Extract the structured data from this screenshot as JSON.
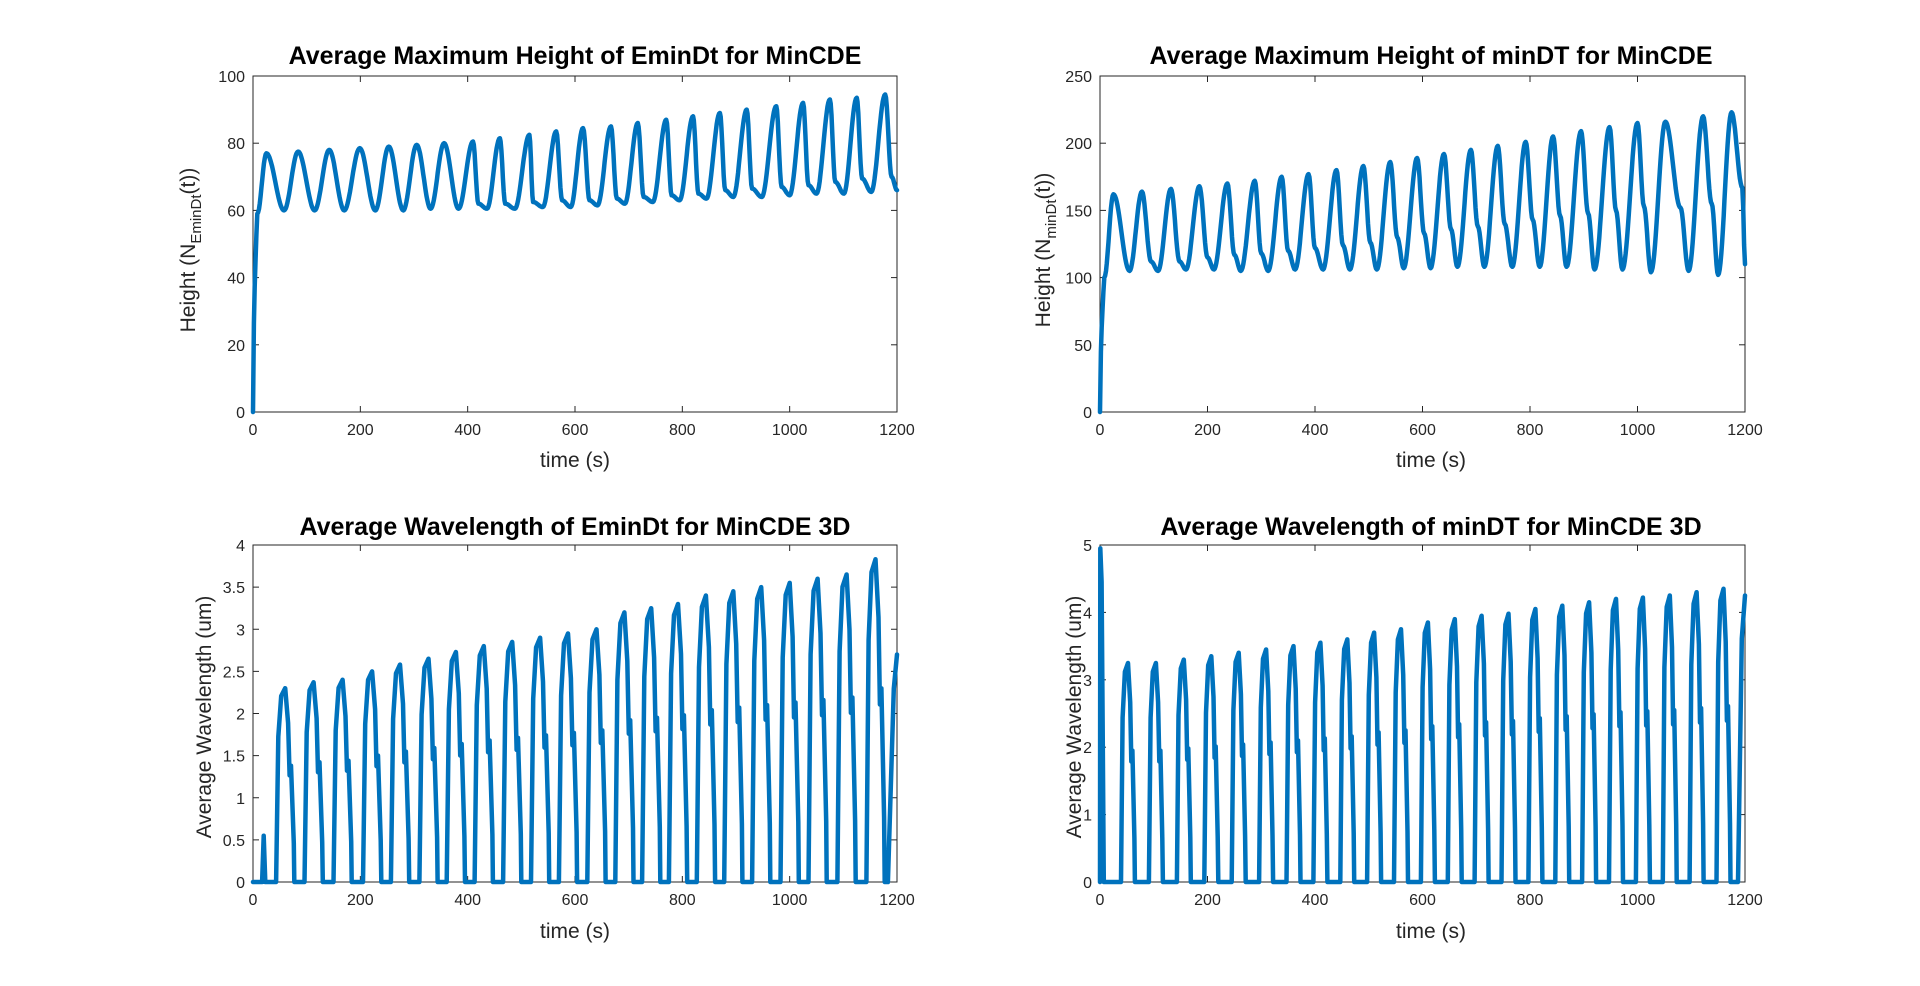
{
  "figure": {
    "background": "#ffffff"
  },
  "chart_data": [
    {
      "id": "top-left",
      "type": "line",
      "title": "Average Maximum Height of EminDt for MinCDE",
      "xlabel": "time (s)",
      "ylabel_main": "Height (N",
      "ylabel_sub": "EminDt",
      "ylabel_end": "(t))",
      "xlim": [
        0,
        1200
      ],
      "ylim": [
        0,
        100
      ],
      "xticks": [
        0,
        200,
        400,
        600,
        800,
        1000,
        1200
      ],
      "yticks": [
        0,
        20,
        40,
        60,
        80,
        100
      ],
      "grid": false,
      "series": [
        {
          "color": "#0072BD",
          "start": {
            "t": 0,
            "y": 0
          },
          "peaks": [
            [
              25,
              77
            ],
            [
              84,
              77.5
            ],
            [
              142,
              78
            ],
            [
              199,
              78.5
            ],
            [
              253,
              79
            ],
            [
              305,
              79.5
            ],
            [
              356,
              80
            ],
            [
              410,
              80.5
            ],
            [
              460,
              81.5
            ],
            [
              515,
              82.5
            ],
            [
              565,
              83.5
            ],
            [
              615,
              84.5
            ],
            [
              667,
              85
            ],
            [
              717,
              86
            ],
            [
              770,
              87
            ],
            [
              820,
              88
            ],
            [
              870,
              89
            ],
            [
              920,
              90
            ],
            [
              975,
              91
            ],
            [
              1025,
              92
            ],
            [
              1075,
              93
            ],
            [
              1125,
              93.5
            ],
            [
              1178,
              94.5
            ]
          ],
          "troughs": [
            [
              8,
              59
            ],
            [
              58,
              60
            ],
            [
              115,
              60
            ],
            [
              170,
              60
            ],
            [
              228,
              60
            ],
            [
              280,
              60
            ],
            [
              331,
              60.5
            ],
            [
              383,
              60.5
            ],
            [
              436,
              60.5
            ],
            [
              488,
              60.5
            ],
            [
              540,
              61
            ],
            [
              592,
              61
            ],
            [
              642,
              61.5
            ],
            [
              693,
              62
            ],
            [
              745,
              62.5
            ],
            [
              795,
              63
            ],
            [
              845,
              63.5
            ],
            [
              895,
              64
            ],
            [
              948,
              64
            ],
            [
              1000,
              64.5
            ],
            [
              1050,
              65
            ],
            [
              1101,
              65
            ],
            [
              1152,
              65.5
            ],
            [
              1200,
              66
            ]
          ],
          "shoulders": [
            [
              420,
              62
            ],
            [
              470,
              62
            ],
            [
              522,
              62.5
            ],
            [
              576,
              63
            ],
            [
              627,
              63
            ],
            [
              678,
              63.5
            ],
            [
              728,
              64
            ],
            [
              780,
              64.5
            ],
            [
              830,
              65
            ],
            [
              880,
              66
            ],
            [
              930,
              66.5
            ],
            [
              985,
              67
            ],
            [
              1035,
              67.5
            ],
            [
              1085,
              68.5
            ],
            [
              1135,
              69.5
            ],
            [
              1190,
              70
            ]
          ]
        }
      ]
    },
    {
      "id": "top-right",
      "type": "line",
      "title": "Average Maximum Height of minDT for MinCDE",
      "xlabel": "time (s)",
      "ylabel_main": "Height (N",
      "ylabel_sub": "minDt",
      "ylabel_end": "(t))",
      "xlim": [
        0,
        1200
      ],
      "ylim": [
        0,
        250
      ],
      "xticks": [
        0,
        200,
        400,
        600,
        800,
        1000,
        1200
      ],
      "yticks": [
        0,
        50,
        100,
        150,
        200,
        250
      ],
      "grid": false,
      "series": [
        {
          "color": "#0072BD",
          "start": {
            "t": 0,
            "y": 0
          },
          "peaks": [
            [
              25,
              162
            ],
            [
              78,
              164
            ],
            [
              132,
              166
            ],
            [
              185,
              168
            ],
            [
              237,
              170
            ],
            [
              288,
              172
            ],
            [
              338,
              175
            ],
            [
              388,
              177
            ],
            [
              440,
              180
            ],
            [
              490,
              183
            ],
            [
              540,
              186
            ],
            [
              590,
              189
            ],
            [
              640,
              192
            ],
            [
              690,
              195
            ],
            [
              740,
              198
            ],
            [
              792,
              201
            ],
            [
              843,
              205
            ],
            [
              895,
              209
            ],
            [
              948,
              212
            ],
            [
              1000,
              215
            ],
            [
              1052,
              216
            ],
            [
              1122,
              220
            ],
            [
              1175,
              223
            ]
          ],
          "troughs": [
            [
              8,
              100
            ],
            [
              55,
              105
            ],
            [
              108,
              105
            ],
            [
              160,
              106
            ],
            [
              212,
              106
            ],
            [
              262,
              105
            ],
            [
              313,
              105
            ],
            [
              363,
              106
            ],
            [
              415,
              106
            ],
            [
              465,
              106
            ],
            [
              515,
              106
            ],
            [
              565,
              107
            ],
            [
              615,
              107
            ],
            [
              665,
              108
            ],
            [
              715,
              108
            ],
            [
              767,
              108
            ],
            [
              818,
              108
            ],
            [
              868,
              108
            ],
            [
              920,
              106
            ],
            [
              972,
              106
            ],
            [
              1025,
              104
            ],
            [
              1095,
              105
            ],
            [
              1150,
              102
            ],
            [
              1200,
              110
            ]
          ],
          "shoulders": [
            [
              95,
              112
            ],
            [
              148,
              112
            ],
            [
              200,
              115
            ],
            [
              250,
              117
            ],
            [
              300,
              118
            ],
            [
              350,
              120
            ],
            [
              400,
              122
            ],
            [
              452,
              124
            ],
            [
              503,
              126
            ],
            [
              553,
              130
            ],
            [
              603,
              133
            ],
            [
              653,
              136
            ],
            [
              703,
              138
            ],
            [
              753,
              140
            ],
            [
              805,
              143
            ],
            [
              856,
              146
            ],
            [
              908,
              148
            ],
            [
              960,
              150
            ],
            [
              1012,
              153
            ],
            [
              1080,
              152
            ],
            [
              1138,
              155
            ],
            [
              1195,
              167
            ]
          ]
        }
      ]
    },
    {
      "id": "bottom-left",
      "type": "line",
      "title": "Average Wavelength of EminDt for MinCDE 3D",
      "xlabel": "time (s)",
      "ylabel_main": "Average Wavelength (um)",
      "xlim": [
        0,
        1200
      ],
      "ylim": [
        0,
        4
      ],
      "xticks": [
        0,
        200,
        400,
        600,
        800,
        1000,
        1200
      ],
      "yticks": [
        0,
        0.5,
        1,
        1.5,
        2,
        2.5,
        3,
        3.5,
        4
      ],
      "grid": false,
      "series": [
        {
          "color": "#0072BD",
          "pulse_width": 34,
          "small_spike": [
            20,
            0.55
          ],
          "pulses": [
            [
              60,
              2.3
            ],
            [
              113,
              2.37
            ],
            [
              167,
              2.4
            ],
            [
              222,
              2.5
            ],
            [
              274,
              2.58
            ],
            [
              327,
              2.65
            ],
            [
              378,
              2.73
            ],
            [
              430,
              2.8
            ],
            [
              483,
              2.85
            ],
            [
              535,
              2.9
            ],
            [
              587,
              2.95
            ],
            [
              640,
              3.0
            ],
            [
              692,
              3.2
            ],
            [
              742,
              3.25
            ],
            [
              792,
              3.3
            ],
            [
              844,
              3.4
            ],
            [
              895,
              3.45
            ],
            [
              947,
              3.5
            ],
            [
              1000,
              3.55
            ],
            [
              1052,
              3.6
            ],
            [
              1106,
              3.65
            ],
            [
              1160,
              3.83
            ],
            [
              1200,
              2.7
            ]
          ]
        }
      ]
    },
    {
      "id": "bottom-right",
      "type": "line",
      "title": "Average Wavelength of minDT for MinCDE 3D",
      "xlabel": "time (s)",
      "ylabel_main": "Average Wavelength (um)",
      "xlim": [
        0,
        1200
      ],
      "ylim": [
        0,
        5
      ],
      "xticks": [
        0,
        200,
        400,
        600,
        800,
        1000,
        1200
      ],
      "yticks": [
        0,
        1,
        2,
        3,
        4,
        5
      ],
      "grid": false,
      "series": [
        {
          "color": "#0072BD",
          "pulse_width": 26,
          "start_spike": [
            3,
            4.95
          ],
          "pulses": [
            [
              52,
              3.25
            ],
            [
              104,
              3.25
            ],
            [
              156,
              3.3
            ],
            [
              207,
              3.35
            ],
            [
              258,
              3.4
            ],
            [
              309,
              3.45
            ],
            [
              360,
              3.5
            ],
            [
              410,
              3.55
            ],
            [
              460,
              3.6
            ],
            [
              510,
              3.7
            ],
            [
              560,
              3.75
            ],
            [
              610,
              3.85
            ],
            [
              660,
              3.9
            ],
            [
              710,
              3.95
            ],
            [
              760,
              3.98
            ],
            [
              810,
              4.05
            ],
            [
              860,
              4.1
            ],
            [
              910,
              4.15
            ],
            [
              960,
              4.2
            ],
            [
              1010,
              4.22
            ],
            [
              1060,
              4.25
            ],
            [
              1110,
              4.3
            ],
            [
              1160,
              4.35
            ],
            [
              1200,
              4.25
            ]
          ]
        }
      ]
    }
  ]
}
